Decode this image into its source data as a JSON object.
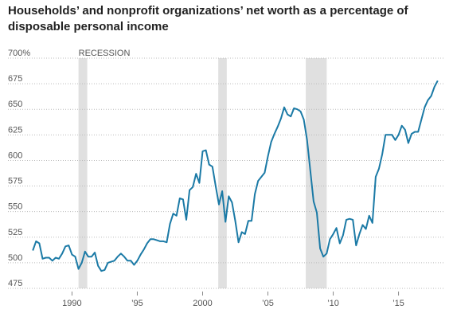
{
  "chart_data": {
    "type": "line",
    "title": "Households’ and nonprofit organizations’ net worth as a percentage of disposable personal income",
    "annotation": "RECESSION",
    "recessions": [
      [
        1990.5,
        1991.17
      ],
      [
        2001.2,
        2001.85
      ],
      [
        2007.9,
        2009.5
      ]
    ],
    "shade_color": "#e0e0e0",
    "x": [
      1987,
      1987.25,
      1987.5,
      1987.75,
      1988,
      1988.25,
      1988.5,
      1988.75,
      1989,
      1989.25,
      1989.5,
      1989.75,
      1990,
      1990.25,
      1990.5,
      1990.75,
      1991,
      1991.25,
      1991.5,
      1991.75,
      1992,
      1992.25,
      1992.5,
      1992.75,
      1993,
      1993.25,
      1993.5,
      1993.75,
      1994,
      1994.25,
      1994.5,
      1994.75,
      1995,
      1995.25,
      1995.5,
      1995.75,
      1996,
      1996.25,
      1996.5,
      1996.75,
      1997,
      1997.25,
      1997.5,
      1997.75,
      1998,
      1998.25,
      1998.5,
      1998.75,
      1999,
      1999.25,
      1999.5,
      1999.75,
      2000,
      2000.25,
      2000.5,
      2000.75,
      2001,
      2001.25,
      2001.5,
      2001.75,
      2002,
      2002.25,
      2002.5,
      2002.75,
      2003,
      2003.25,
      2003.5,
      2003.75,
      2004,
      2004.25,
      2004.5,
      2004.75,
      2005,
      2005.25,
      2005.5,
      2005.75,
      2006,
      2006.25,
      2006.5,
      2006.75,
      2007,
      2007.25,
      2007.5,
      2007.75,
      2008,
      2008.25,
      2008.5,
      2008.75,
      2009,
      2009.25,
      2009.5,
      2009.75,
      2010,
      2010.25,
      2010.5,
      2010.75,
      2011,
      2011.25,
      2011.5,
      2011.75,
      2012,
      2012.25,
      2012.5,
      2012.75,
      2013,
      2013.25,
      2013.5,
      2013.75,
      2014,
      2014.25,
      2014.5,
      2014.75,
      2015,
      2015.25,
      2015.5,
      2015.75,
      2016,
      2016.25,
      2016.5,
      2016.75,
      2017,
      2017.25,
      2017.5,
      2017.75,
      2018
    ],
    "series": [
      {
        "name": "Net worth",
        "color": "#1b7aa6",
        "values": [
          512,
          521,
          519,
          504,
          505,
          505,
          502,
          505,
          504,
          509,
          516,
          517,
          508,
          506,
          494,
          500,
          511,
          506,
          506,
          510,
          497,
          492,
          493,
          500,
          501,
          502,
          506,
          509,
          506,
          502,
          502,
          498,
          502,
          508,
          513,
          519,
          523,
          523,
          522,
          521,
          521,
          520,
          538,
          548,
          546,
          563,
          562,
          542,
          571,
          574,
          587,
          578,
          609,
          610,
          596,
          594,
          575,
          557,
          570,
          540,
          565,
          559,
          541,
          520,
          530,
          528,
          541,
          541,
          567,
          580,
          584,
          588,
          604,
          618,
          626,
          633,
          641,
          652,
          645,
          643,
          651,
          650,
          648,
          640,
          620,
          590,
          560,
          549,
          514,
          506,
          509,
          523,
          528,
          534,
          519,
          527,
          542,
          543,
          542,
          517,
          528,
          537,
          533,
          546,
          539,
          584,
          592,
          606,
          625,
          625,
          625,
          620,
          625,
          634,
          630,
          617,
          626,
          628,
          628,
          640,
          652,
          659,
          663,
          672,
          678
        ]
      }
    ],
    "xlim": [
      1986.5,
      2018.5
    ],
    "xticks": [
      {
        "value": 1990,
        "label": "1990"
      },
      {
        "value": 1995,
        "label": "’95"
      },
      {
        "value": 2000,
        "label": "2000"
      },
      {
        "value": 2005,
        "label": "’05"
      },
      {
        "value": 2010,
        "label": "’10"
      },
      {
        "value": 2015,
        "label": "’15"
      }
    ],
    "ylim": [
      475,
      700
    ],
    "yticks": [
      475,
      500,
      525,
      550,
      575,
      600,
      625,
      650,
      675,
      {
        "value": 700,
        "label": "700%"
      }
    ],
    "grid": true
  }
}
